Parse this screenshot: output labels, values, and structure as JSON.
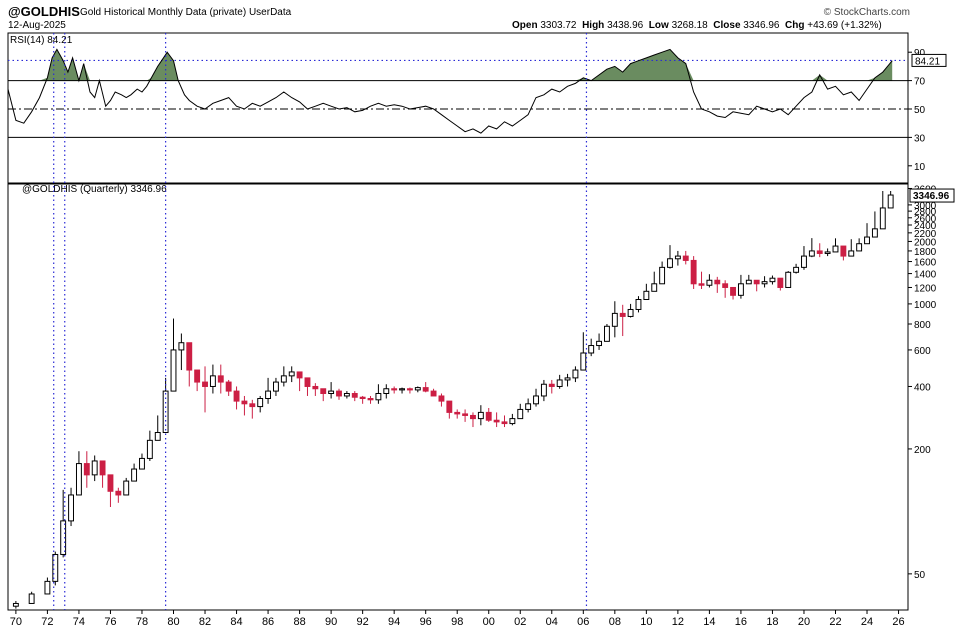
{
  "header": {
    "symbol": "@GOLDHIS",
    "description": "Gold Historical Monthly Data (private)",
    "userdata": "UserData",
    "date": "12-Aug-2025",
    "open_label": "Open",
    "open": "3303.72",
    "high_label": "High",
    "high": "3438.96",
    "low_label": "Low",
    "low": "3268.18",
    "close_label": "Close",
    "close": "3346.96",
    "chg_label": "Chg",
    "chg": "+43.69 (+1.32%)",
    "brand": "© StockCharts.com"
  },
  "colors": {
    "up": "#000000",
    "down": "#cc1f44",
    "rsi_fill": "#6a8c60",
    "marker_line": "#2b2bd6",
    "grid": "#000000"
  },
  "chart_data": [
    {
      "type": "line",
      "title": "RSI(14) 84.21",
      "series": [
        {
          "name": "RSI(14)",
          "x": [
            1969.5,
            1970.0,
            1970.5,
            1971.0,
            1971.5,
            1972.0,
            1972.3,
            1972.6,
            1973.0,
            1973.3,
            1973.6,
            1974.0,
            1974.3,
            1974.7,
            1975.0,
            1975.3,
            1975.7,
            1976.0,
            1976.3,
            1976.7,
            1977.0,
            1977.3,
            1977.7,
            1978.0,
            1978.3,
            1978.6,
            1979.0,
            1979.3,
            1979.6,
            1980.0,
            1980.3,
            1980.7,
            1981.0,
            1981.5,
            1982.0,
            1982.5,
            1983.0,
            1983.5,
            1984.0,
            1984.5,
            1985.0,
            1985.5,
            1986.0,
            1986.5,
            1987.0,
            1987.5,
            1988.0,
            1988.5,
            1989.0,
            1989.5,
            1990.0,
            1990.5,
            1991.0,
            1991.5,
            1992.0,
            1992.5,
            1993.0,
            1993.5,
            1994.0,
            1994.5,
            1995.0,
            1995.5,
            1996.0,
            1996.5,
            1997.0,
            1997.5,
            1998.0,
            1998.5,
            1999.0,
            1999.5,
            2000.0,
            2000.5,
            2001.0,
            2001.5,
            2002.0,
            2002.5,
            2003.0,
            2003.5,
            2004.0,
            2004.5,
            2005.0,
            2005.5,
            2006.0,
            2006.5,
            2007.0,
            2007.5,
            2008.0,
            2008.5,
            2009.0,
            2009.5,
            2010.0,
            2010.5,
            2011.0,
            2011.5,
            2012.0,
            2012.5,
            2013.0,
            2013.5,
            2014.0,
            2014.5,
            2015.0,
            2015.5,
            2016.0,
            2016.5,
            2017.0,
            2017.5,
            2018.0,
            2018.5,
            2019.0,
            2019.5,
            2020.0,
            2020.5,
            2021.0,
            2021.5,
            2022.0,
            2022.5,
            2023.0,
            2023.5,
            2024.0,
            2024.5,
            2025.0,
            2025.6
          ],
          "values": [
            64,
            42,
            40,
            48,
            58,
            72,
            86,
            92,
            84,
            76,
            86,
            70,
            82,
            62,
            58,
            70,
            52,
            56,
            62,
            60,
            58,
            60,
            64,
            62,
            66,
            72,
            80,
            85,
            90,
            84,
            70,
            60,
            56,
            52,
            50,
            54,
            56,
            58,
            52,
            50,
            54,
            52,
            55,
            58,
            62,
            58,
            55,
            50,
            52,
            54,
            52,
            50,
            51,
            48,
            49,
            52,
            54,
            52,
            53,
            52,
            50,
            51,
            52,
            50,
            46,
            42,
            38,
            34,
            36,
            33,
            38,
            36,
            41,
            38,
            42,
            46,
            58,
            60,
            64,
            62,
            66,
            68,
            72,
            70,
            74,
            78,
            80,
            76,
            82,
            84,
            86,
            88,
            90,
            92,
            86,
            82,
            62,
            50,
            48,
            45,
            44,
            48,
            47,
            46,
            52,
            50,
            48,
            50,
            46,
            52,
            58,
            62,
            74,
            64,
            66,
            60,
            62,
            56,
            64,
            72,
            76,
            84
          ]
        }
      ],
      "ylim": [
        0,
        100
      ],
      "yticks": [
        10,
        30,
        50,
        70,
        90
      ],
      "ref_lines": [
        30,
        50,
        70
      ],
      "overbought": 70,
      "dotted_level": 84.21,
      "last_value": "84.21",
      "grid": false
    },
    {
      "type": "candlestick",
      "title": "@GOLDHIS (Quarterly) 3346.96",
      "scale": "log",
      "ylim": [
        35,
        3700
      ],
      "yticks": [
        "50",
        "200",
        "400",
        "600",
        "800",
        "1000",
        "1200",
        "1400",
        "1600",
        "1800",
        "2000",
        "2200",
        "2400",
        "2600",
        "2800",
        "3000",
        "3600"
      ],
      "xticks": [
        "70",
        "72",
        "74",
        "76",
        "78",
        "80",
        "82",
        "84",
        "86",
        "88",
        "90",
        "92",
        "94",
        "96",
        "98",
        "00",
        "02",
        "04",
        "06",
        "08",
        "10",
        "12",
        "14",
        "16",
        "18",
        "20",
        "22",
        "24",
        "26"
      ],
      "xlim": [
        1969.5,
        2026.6
      ],
      "last_value": "3346.96",
      "x": [
        1970.0,
        1971.0,
        1972.0,
        1972.5,
        1973.0,
        1973.5,
        1974.0,
        1974.5,
        1975.0,
        1975.5,
        1976.0,
        1976.5,
        1977.0,
        1977.5,
        1978.0,
        1978.5,
        1979.0,
        1979.5,
        1980.0,
        1980.5,
        1981.0,
        1981.5,
        1982.0,
        1982.5,
        1983.0,
        1983.5,
        1984.0,
        1984.5,
        1985.0,
        1985.5,
        1986.0,
        1986.5,
        1987.0,
        1987.5,
        1988.0,
        1988.5,
        1989.0,
        1989.5,
        1990.0,
        1990.5,
        1991.0,
        1991.5,
        1992.0,
        1992.5,
        1993.0,
        1993.5,
        1994.0,
        1994.5,
        1995.0,
        1995.5,
        1996.0,
        1996.5,
        1997.0,
        1997.5,
        1998.0,
        1998.5,
        1999.0,
        1999.5,
        2000.0,
        2000.5,
        2001.0,
        2001.5,
        2002.0,
        2002.5,
        2003.0,
        2003.5,
        2004.0,
        2004.5,
        2005.0,
        2005.5,
        2006.0,
        2006.5,
        2007.0,
        2007.5,
        2008.0,
        2008.5,
        2009.0,
        2009.5,
        2010.0,
        2010.5,
        2011.0,
        2011.5,
        2012.0,
        2012.5,
        2013.0,
        2013.5,
        2014.0,
        2014.5,
        2015.0,
        2015.5,
        2016.0,
        2016.5,
        2017.0,
        2017.5,
        2018.0,
        2018.5,
        2019.0,
        2019.5,
        2020.0,
        2020.5,
        2021.0,
        2021.5,
        2022.0,
        2022.5,
        2023.0,
        2023.5,
        2024.0,
        2024.5,
        2025.0,
        2025.5
      ],
      "close": [
        36,
        40,
        46,
        62,
        90,
        120,
        170,
        150,
        175,
        150,
        125,
        120,
        140,
        160,
        180,
        220,
        240,
        380,
        600,
        650,
        480,
        420,
        400,
        450,
        420,
        380,
        340,
        330,
        320,
        350,
        380,
        420,
        450,
        470,
        440,
        400,
        390,
        370,
        380,
        360,
        370,
        355,
        350,
        345,
        370,
        390,
        385,
        390,
        385,
        395,
        380,
        360,
        340,
        300,
        295,
        290,
        280,
        300,
        275,
        270,
        265,
        280,
        310,
        330,
        360,
        410,
        400,
        430,
        440,
        480,
        580,
        630,
        660,
        780,
        900,
        870,
        940,
        1050,
        1150,
        1250,
        1500,
        1650,
        1700,
        1620,
        1250,
        1230,
        1300,
        1250,
        1200,
        1100,
        1250,
        1300,
        1250,
        1280,
        1330,
        1200,
        1420,
        1500,
        1700,
        1800,
        1750,
        1780,
        1900,
        1700,
        1800,
        1950,
        2100,
        2300,
        2900,
        3346.96
      ],
      "range": [
        [
          34,
          37
        ],
        [
          36,
          41
        ],
        [
          40,
          48
        ],
        [
          44,
          64
        ],
        [
          60,
          127
        ],
        [
          85,
          130
        ],
        [
          120,
          195
        ],
        [
          130,
          195
        ],
        [
          140,
          186
        ],
        [
          130,
          170
        ],
        [
          105,
          140
        ],
        [
          110,
          130
        ],
        [
          125,
          145
        ],
        [
          140,
          170
        ],
        [
          160,
          190
        ],
        [
          175,
          245
        ],
        [
          220,
          290
        ],
        [
          280,
          440
        ],
        [
          470,
          850
        ],
        [
          480,
          720
        ],
        [
          400,
          540
        ],
        [
          380,
          470
        ],
        [
          300,
          500
        ],
        [
          370,
          510
        ],
        [
          370,
          510
        ],
        [
          360,
          430
        ],
        [
          310,
          400
        ],
        [
          290,
          360
        ],
        [
          280,
          345
        ],
        [
          300,
          360
        ],
        [
          330,
          440
        ],
        [
          360,
          440
        ],
        [
          400,
          500
        ],
        [
          420,
          500
        ],
        [
          380,
          460
        ],
        [
          360,
          420
        ],
        [
          360,
          415
        ],
        [
          340,
          380
        ],
        [
          350,
          420
        ],
        [
          345,
          390
        ],
        [
          350,
          380
        ],
        [
          340,
          380
        ],
        [
          330,
          360
        ],
        [
          330,
          360
        ],
        [
          330,
          410
        ],
        [
          350,
          410
        ],
        [
          370,
          400
        ],
        [
          370,
          395
        ],
        [
          370,
          395
        ],
        [
          375,
          400
        ],
        [
          375,
          420
        ],
        [
          360,
          390
        ],
        [
          320,
          370
        ],
        [
          280,
          330
        ],
        [
          280,
          310
        ],
        [
          270,
          310
        ],
        [
          255,
          300
        ],
        [
          260,
          325
        ],
        [
          270,
          315
        ],
        [
          255,
          300
        ],
        [
          255,
          290
        ],
        [
          260,
          295
        ],
        [
          280,
          330
        ],
        [
          300,
          350
        ],
        [
          320,
          390
        ],
        [
          340,
          430
        ],
        [
          370,
          430
        ],
        [
          390,
          455
        ],
        [
          400,
          460
        ],
        [
          420,
          500
        ],
        [
          520,
          730
        ],
        [
          560,
          680
        ],
        [
          600,
          720
        ],
        [
          680,
          800
        ],
        [
          690,
          1030
        ],
        [
          700,
          990
        ],
        [
          860,
          1000
        ],
        [
          910,
          1090
        ],
        [
          1050,
          1250
        ],
        [
          1150,
          1430
        ],
        [
          1320,
          1600
        ],
        [
          1480,
          1920
        ],
        [
          1530,
          1800
        ],
        [
          1550,
          1800
        ],
        [
          1180,
          1700
        ],
        [
          1180,
          1430
        ],
        [
          1200,
          1390
        ],
        [
          1130,
          1350
        ],
        [
          1070,
          1300
        ],
        [
          1050,
          1200
        ],
        [
          1060,
          1380
        ],
        [
          1250,
          1380
        ],
        [
          1150,
          1300
        ],
        [
          1200,
          1360
        ],
        [
          1240,
          1370
        ],
        [
          1160,
          1310
        ],
        [
          1270,
          1440
        ],
        [
          1400,
          1560
        ],
        [
          1460,
          1900
        ],
        [
          1680,
          2075
        ],
        [
          1680,
          1960
        ],
        [
          1700,
          1850
        ],
        [
          1780,
          2070
        ],
        [
          1620,
          1880
        ],
        [
          1790,
          2050
        ],
        [
          1800,
          2070
        ],
        [
          1980,
          2450
        ],
        [
          2280,
          2790
        ],
        [
          2600,
          3500
        ],
        [
          3100,
          3500
        ]
      ]
    }
  ],
  "markers": [
    1972.4,
    1973.1,
    1979.5,
    2006.2
  ]
}
